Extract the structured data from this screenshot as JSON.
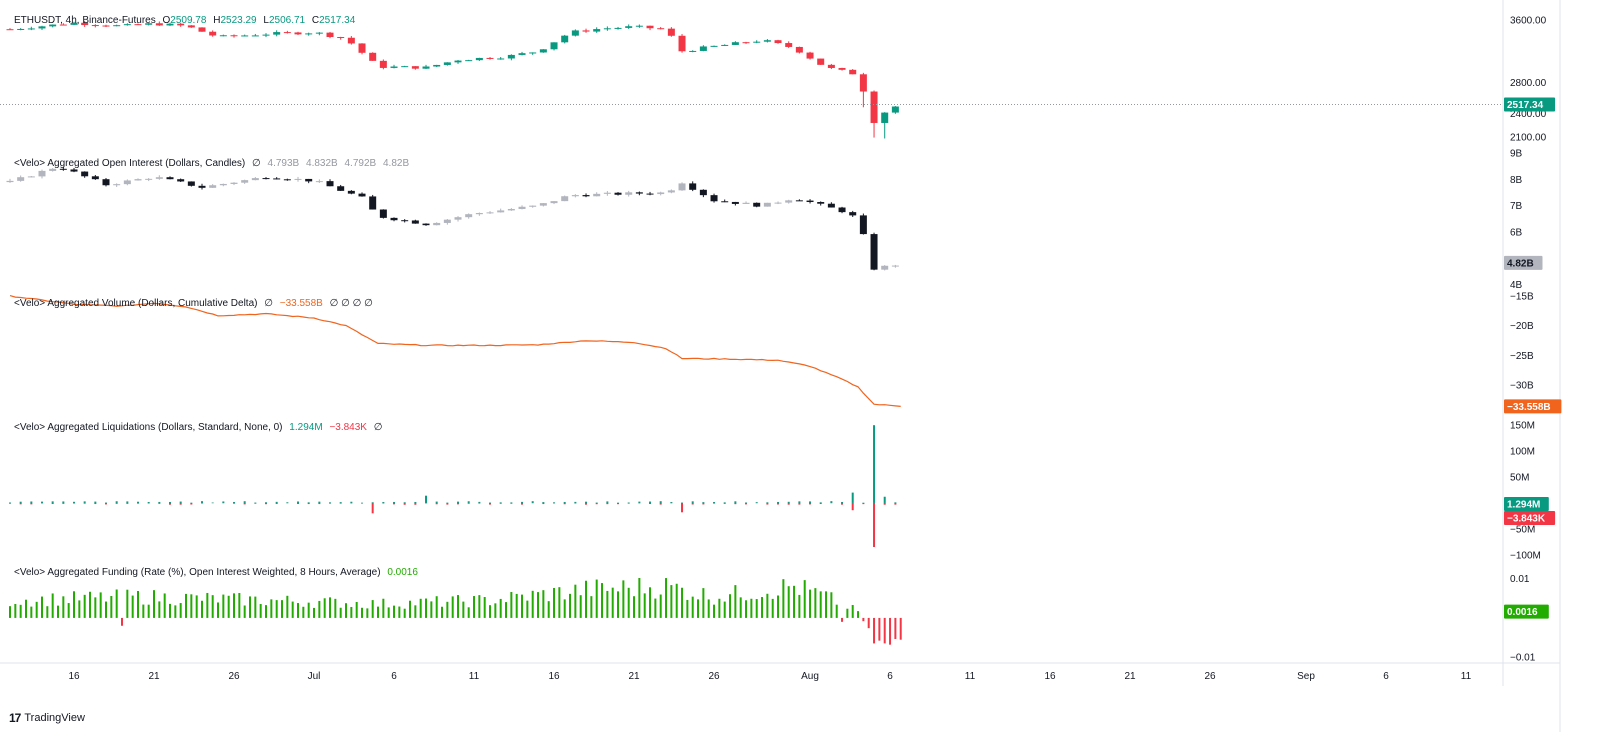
{
  "panes": {
    "price": {
      "symbol": "ETHUSDT, 4h, Binance-Futures",
      "o_label": "O",
      "o": "2509.78",
      "h_label": "H",
      "h": "2523.29",
      "l_label": "L",
      "l": "2506.71",
      "c_label": "C",
      "c": "2517.34",
      "last_badge": "2517.34",
      "badge_color": "#089981"
    },
    "open_interest": {
      "title": "<Velo> Aggregated Open Interest (Dollars, Candles)",
      "null_mark": "∅",
      "values": [
        "4.793B",
        "4.832B",
        "4.792B",
        "4.82B"
      ],
      "last_badge": "4.82B"
    },
    "volume_delta": {
      "title": "<Velo> Aggregated Volume (Dollars, Cumulative Delta)",
      "null_mark": "∅",
      "value": "−33.558B",
      "trailing": "∅ ∅ ∅ ∅",
      "last_badge": "−33.558B",
      "color": "#f0641e"
    },
    "liquidations": {
      "title": "<Velo> Aggregated Liquidations (Dollars, Standard, None, 0)",
      "long_value": "1.294M",
      "short_value": "−3.843K",
      "null_mark": "∅",
      "badge_up": "1.294M",
      "badge_down": "−3.843K"
    },
    "funding": {
      "title": "<Velo> Aggregated Funding (Rate (%), Open Interest Weighted, 8 Hours, Average)",
      "value": "0.0016",
      "last_badge": "0.0016",
      "color": "#22ab00"
    }
  },
  "brand": {
    "name": "TradingView"
  },
  "chart_data": [
    {
      "type": "candlestick",
      "title": "ETHUSDT, 4h, Binance-Futures",
      "ylim": [
        2000,
        3700
      ],
      "y_ticks": [
        "3600.00",
        "2800.00",
        "2400.00",
        "2100.00"
      ],
      "y_tick_values": [
        3600,
        2800,
        2400,
        2100
      ],
      "x_ticks": [
        "16",
        "21",
        "26",
        "Jul",
        "6",
        "11",
        "16",
        "21",
        "26",
        "Aug",
        "6",
        "11",
        "16",
        "21",
        "26",
        "Sep",
        "6",
        "11"
      ],
      "anchors": [
        {
          "x": "Jun 12",
          "y": 3480
        },
        {
          "x": "Jun 16",
          "y": 3560
        },
        {
          "x": "Jun 19",
          "y": 3520
        },
        {
          "x": "Jun 21",
          "y": 3550
        },
        {
          "x": "Jun 23",
          "y": 3520
        },
        {
          "x": "Jun 25",
          "y": 3380
        },
        {
          "x": "Jun 28",
          "y": 3420
        },
        {
          "x": "Jul 1",
          "y": 3440
        },
        {
          "x": "Jul 3",
          "y": 3360
        },
        {
          "x": "Jul 5",
          "y": 3000
        },
        {
          "x": "Jul 8",
          "y": 2990
        },
        {
          "x": "Jul 10",
          "y": 3090
        },
        {
          "x": "Jul 13",
          "y": 3130
        },
        {
          "x": "Jul 15",
          "y": 3200
        },
        {
          "x": "Jul 17",
          "y": 3440
        },
        {
          "x": "Jul 19",
          "y": 3490
        },
        {
          "x": "Jul 21",
          "y": 3510
        },
        {
          "x": "Jul 23",
          "y": 3480
        },
        {
          "x": "Jul 24",
          "y": 3200
        },
        {
          "x": "Jul 26",
          "y": 3260
        },
        {
          "x": "Jul 29",
          "y": 3340
        },
        {
          "x": "Jul 31",
          "y": 3240
        },
        {
          "x": "Aug 2",
          "y": 2990
        },
        {
          "x": "Aug 4",
          "y": 2900
        },
        {
          "x": "Aug 5",
          "y": 2300
        },
        {
          "x": "Aug 6",
          "y": 2480
        },
        {
          "x": "Aug 7",
          "y": 2517
        }
      ],
      "last": 2517.34
    },
    {
      "type": "candlestick",
      "title": "<Velo> Aggregated Open Interest (Dollars, Candles)",
      "ylim": [
        3.9,
        9.2
      ],
      "y_ticks": [
        "9B",
        "8B",
        "7B",
        "6B",
        "4B"
      ],
      "y_tick_values": [
        9,
        8,
        7,
        6,
        4
      ],
      "anchors": [
        {
          "x": "Jun 12",
          "y": 7.9
        },
        {
          "x": "Jun 15",
          "y": 8.5
        },
        {
          "x": "Jun 18",
          "y": 7.8
        },
        {
          "x": "Jun 21",
          "y": 8.1
        },
        {
          "x": "Jun 24",
          "y": 7.7
        },
        {
          "x": "Jun 28",
          "y": 8.1
        },
        {
          "x": "Jul 1",
          "y": 7.95
        },
        {
          "x": "Jul 4",
          "y": 7.3
        },
        {
          "x": "Jul 5",
          "y": 6.6
        },
        {
          "x": "Jul 8",
          "y": 6.3
        },
        {
          "x": "Jul 11",
          "y": 6.7
        },
        {
          "x": "Jul 15",
          "y": 7.0
        },
        {
          "x": "Jul 17",
          "y": 7.4
        },
        {
          "x": "Jul 23",
          "y": 7.5
        },
        {
          "x": "Jul 24",
          "y": 7.9
        },
        {
          "x": "Jul 26",
          "y": 7.2
        },
        {
          "x": "Jul 29",
          "y": 7.0
        },
        {
          "x": "Jul 31",
          "y": 7.3
        },
        {
          "x": "Aug 3",
          "y": 6.8
        },
        {
          "x": "Aug 4",
          "y": 6.5
        },
        {
          "x": "Aug 5",
          "y": 4.6
        },
        {
          "x": "Aug 7",
          "y": 4.82
        }
      ],
      "last": 4.82
    },
    {
      "type": "line",
      "title": "<Velo> Aggregated Volume (Dollars, Cumulative Delta)",
      "ylim": [
        -34.5,
        -14.5
      ],
      "y_ticks": [
        "−15B",
        "−20B",
        "−25B",
        "−30B"
      ],
      "y_tick_values": [
        -15,
        -20,
        -25,
        -30
      ],
      "points": [
        {
          "x": "Jun 12",
          "y": -15.0
        },
        {
          "x": "Jun 16",
          "y": -16.4
        },
        {
          "x": "Jun 19",
          "y": -16.7
        },
        {
          "x": "Jun 21",
          "y": -16.2
        },
        {
          "x": "Jun 23",
          "y": -16.8
        },
        {
          "x": "Jun 25",
          "y": -18.3
        },
        {
          "x": "Jun 28",
          "y": -18.0
        },
        {
          "x": "Jul 1",
          "y": -18.7
        },
        {
          "x": "Jul 3",
          "y": -20.0
        },
        {
          "x": "Jul 5",
          "y": -23.0
        },
        {
          "x": "Jul 8",
          "y": -23.3
        },
        {
          "x": "Jul 12",
          "y": -23.3
        },
        {
          "x": "Jul 15",
          "y": -23.2
        },
        {
          "x": "Jul 18",
          "y": -22.5
        },
        {
          "x": "Jul 21",
          "y": -22.8
        },
        {
          "x": "Jul 23",
          "y": -23.8
        },
        {
          "x": "Jul 24",
          "y": -25.5
        },
        {
          "x": "Jul 27",
          "y": -25.6
        },
        {
          "x": "Jul 30",
          "y": -25.8
        },
        {
          "x": "Aug 1",
          "y": -26.8
        },
        {
          "x": "Aug 3",
          "y": -29.0
        },
        {
          "x": "Aug 4",
          "y": -30.3
        },
        {
          "x": "Aug 5",
          "y": -33.2
        },
        {
          "x": "Aug 7",
          "y": -33.558
        }
      ],
      "last": -33.558
    },
    {
      "type": "bar",
      "title": "<Velo> Aggregated Liquidations (Dollars, Standard, None, 0)",
      "ylim": [
        -110,
        160
      ],
      "unit": "M",
      "y_ticks": [
        "150M",
        "100M",
        "50M",
        "−50M",
        "−100M"
      ],
      "y_tick_values": [
        150,
        100,
        50,
        -50,
        -100
      ],
      "series": [
        {
          "name": "long",
          "typical": 2,
          "spikes": [
            {
              "x": "Aug 5",
              "y": 150
            },
            {
              "x": "Aug 4",
              "y": 20
            },
            {
              "x": "Jul 8",
              "y": 14
            },
            {
              "x": "Aug 6",
              "y": 12
            }
          ]
        },
        {
          "name": "short",
          "typical": -2,
          "spikes": [
            {
              "x": "Aug 5",
              "y": -85
            },
            {
              "x": "Jul 5",
              "y": -20
            },
            {
              "x": "Jul 24",
              "y": -18
            },
            {
              "x": "Aug 4",
              "y": -14
            }
          ]
        }
      ],
      "last_long": 1.294,
      "last_short": -0.003843
    },
    {
      "type": "bar",
      "title": "<Velo> Aggregated Funding (Rate (%), Open Interest Weighted, 8 Hours, Average)",
      "ylim": [
        -0.0115,
        0.0135
      ],
      "y_ticks": [
        "0.01",
        "−0.01"
      ],
      "y_tick_values": [
        0.01,
        -0.01
      ],
      "anchors": [
        {
          "x": "Jun 12",
          "y": 0.005
        },
        {
          "x": "Jun 20",
          "y": 0.006
        },
        {
          "x": "Jun 28",
          "y": 0.005
        },
        {
          "x": "Jul 5",
          "y": 0.004
        },
        {
          "x": "Jul 12",
          "y": 0.005
        },
        {
          "x": "Jul 18",
          "y": 0.008
        },
        {
          "x": "Jul 23",
          "y": 0.009
        },
        {
          "x": "Jul 26",
          "y": 0.006
        },
        {
          "x": "Jul 31",
          "y": 0.009
        },
        {
          "x": "Aug 2",
          "y": 0.006
        },
        {
          "x": "Aug 4",
          "y": 0.002
        },
        {
          "x": "Aug 5",
          "y": -0.006
        },
        {
          "x": "Aug 7",
          "y": 0.0016
        }
      ],
      "negatives": [
        {
          "x": "Jun 19",
          "y": -0.002
        },
        {
          "x": "Aug 3",
          "y": -0.001
        }
      ],
      "last": 0.0016
    }
  ]
}
